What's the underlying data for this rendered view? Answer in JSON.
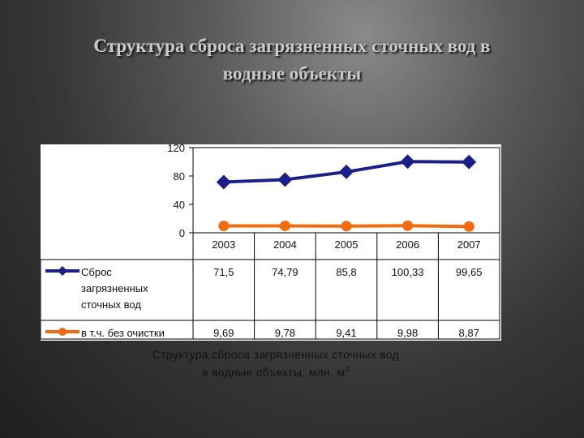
{
  "slide": {
    "title_line1": "Структура сброса загрязненных сточных вод в",
    "title_line2": "водные объекты"
  },
  "chart_data": {
    "type": "line",
    "categories": [
      "2003",
      "2004",
      "2005",
      "2006",
      "2007"
    ],
    "series": [
      {
        "name": "Сброс загрязненных сточных вод",
        "name_lines": [
          "Сброс",
          "загрязненных",
          "сточных вод"
        ],
        "color": "#1b1f8a",
        "marker": "diamond",
        "values": [
          71.5,
          74.79,
          85.8,
          100.33,
          99.65
        ],
        "labels": [
          "71,5",
          "74,79",
          "85,8",
          "100,33",
          "99,65"
        ]
      },
      {
        "name": "в т.ч. без очистки",
        "name_lines": [
          "в т.ч. без очистки"
        ],
        "color": "#f26b0f",
        "marker": "circle",
        "values": [
          9.69,
          9.78,
          9.41,
          9.98,
          8.87
        ],
        "labels": [
          "9,69",
          "9,78",
          "9,41",
          "9,98",
          "8,87"
        ]
      }
    ],
    "ylim": [
      0,
      120
    ],
    "yticks": [
      0,
      40,
      80,
      120
    ],
    "data_table": true,
    "caption_main": "Структура сброса загрязненных сточных вод",
    "caption_line2": "в водные объекты, млн. м",
    "caption_sup": "3"
  }
}
